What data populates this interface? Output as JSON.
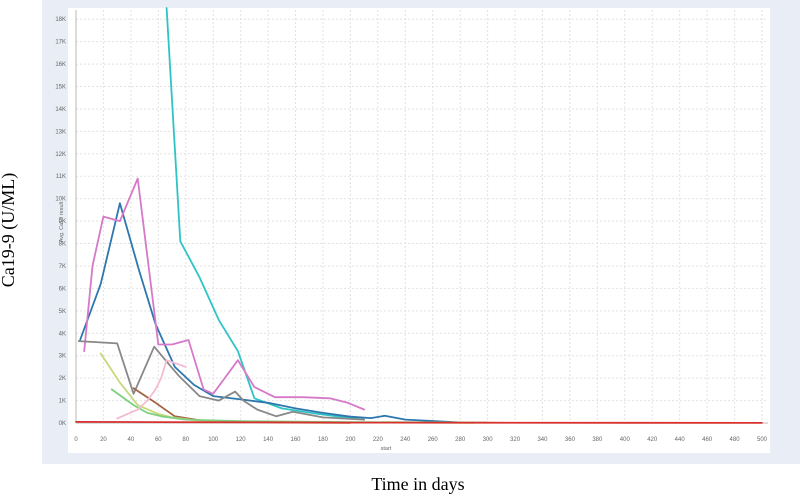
{
  "chart_data": {
    "type": "line",
    "title": "",
    "xlabel": "Time in days",
    "ylabel": "Ca19-9 (U/ML)",
    "inner_xlabel": "start",
    "inner_ylabel": "Avg. Ca19 result",
    "xlim": [
      0,
      500
    ],
    "ylim": [
      0,
      18500
    ],
    "x_ticks": [
      0,
      20,
      40,
      60,
      80,
      100,
      120,
      140,
      160,
      180,
      200,
      220,
      240,
      260,
      280,
      300,
      320,
      340,
      360,
      380,
      400,
      420,
      440,
      460,
      480,
      500
    ],
    "x_tick_labels": [
      "0",
      "20",
      "40",
      "60",
      "80",
      "100",
      "120",
      "140",
      "160",
      "180",
      "200",
      "220",
      "240",
      "260",
      "280",
      "300",
      "320",
      "340",
      "360",
      "380",
      "400",
      "420",
      "440",
      "460",
      "480",
      "500"
    ],
    "y_ticks": [
      0,
      1000,
      2000,
      3000,
      4000,
      5000,
      6000,
      7000,
      8000,
      9000,
      10000,
      11000,
      12000,
      13000,
      14000,
      15000,
      16000,
      17000,
      18000
    ],
    "y_tick_labels": [
      "0K",
      "1K",
      "2K",
      "3K",
      "4K",
      "5K",
      "6K",
      "7K",
      "8K",
      "9K",
      "10K",
      "11K",
      "12K",
      "13K",
      "14K",
      "15K",
      "16K",
      "17K",
      "18K"
    ],
    "grid": true,
    "series": [
      {
        "color": "#2ec4c6",
        "x": [
          66,
          76,
          90,
          104,
          118,
          130,
          150,
          175,
          200,
          210
        ],
        "y": [
          18500,
          8100,
          6500,
          4600,
          3200,
          1100,
          650,
          420,
          220,
          150
        ]
      },
      {
        "color": "#2d77ad",
        "x": [
          3,
          18,
          32,
          46,
          58,
          72,
          86,
          100,
          120,
          140,
          160,
          180,
          200,
          215,
          225,
          240,
          260,
          282
        ],
        "y": [
          3700,
          6200,
          9800,
          6800,
          4400,
          2500,
          1700,
          1200,
          1050,
          900,
          650,
          450,
          280,
          220,
          320,
          150,
          90,
          20
        ]
      },
      {
        "color": "#d679c8",
        "x": [
          6,
          12,
          20,
          32,
          45,
          60,
          70,
          82,
          93,
          100,
          118,
          130,
          145,
          165,
          185,
          198,
          210
        ],
        "y": [
          3200,
          7000,
          9200,
          9000,
          10900,
          3500,
          3500,
          3700,
          1500,
          1300,
          2800,
          1600,
          1150,
          1150,
          1100,
          900,
          600
        ]
      },
      {
        "color": "#888888",
        "x": [
          2,
          30,
          42,
          57,
          68,
          75,
          90,
          104,
          116,
          122,
          132,
          146,
          158,
          180,
          210
        ],
        "y": [
          3650,
          3550,
          1300,
          3400,
          2600,
          2100,
          1200,
          1000,
          1400,
          1000,
          600,
          300,
          500,
          250,
          150
        ]
      },
      {
        "color": "#a36343",
        "x": [
          42,
          58,
          72,
          90,
          120,
          160,
          200
        ],
        "y": [
          1550,
          900,
          300,
          120,
          50,
          20,
          10
        ]
      },
      {
        "color": "#c5d97c",
        "x": [
          18,
          32,
          45,
          60,
          70,
          90,
          130,
          200,
          290
        ],
        "y": [
          3100,
          1800,
          800,
          400,
          250,
          100,
          60,
          30,
          10
        ]
      },
      {
        "color": "#7ed080",
        "x": [
          26,
          42,
          52,
          62,
          80,
          120,
          200,
          300
        ],
        "y": [
          1500,
          800,
          450,
          300,
          150,
          80,
          40,
          20
        ]
      },
      {
        "color": "#f4bcd2",
        "x": [
          30,
          45,
          52,
          58,
          62,
          66,
          80
        ],
        "y": [
          200,
          600,
          1000,
          1500,
          2000,
          2800,
          2500
        ]
      },
      {
        "color": "#d8322f",
        "x": [
          0,
          60,
          120,
          200,
          300,
          400,
          500
        ],
        "y": [
          50,
          40,
          30,
          20,
          15,
          10,
          5
        ]
      }
    ]
  }
}
